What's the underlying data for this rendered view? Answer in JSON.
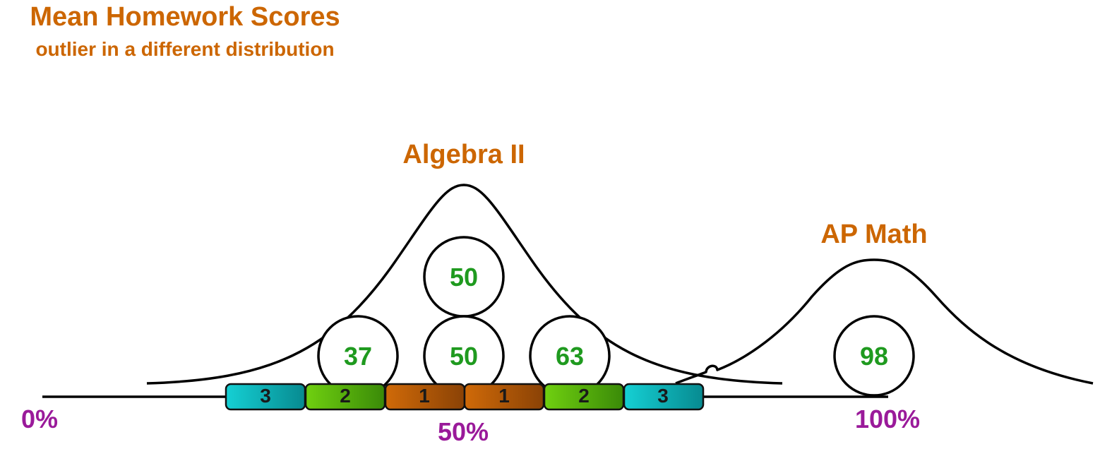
{
  "title": "Mean Homework Scores",
  "subtitle": "outlier in a different distribution",
  "distributions": [
    {
      "name": "Algebra II"
    },
    {
      "name": "AP Math"
    }
  ],
  "scores": [
    {
      "value": "37",
      "group": "Algebra II"
    },
    {
      "value": "50",
      "group": "Algebra II"
    },
    {
      "value": "50",
      "group": "Algebra II"
    },
    {
      "value": "63",
      "group": "Algebra II"
    },
    {
      "value": "98",
      "group": "AP Math"
    }
  ],
  "deviation_bands": [
    {
      "label": "3",
      "color": "cyan"
    },
    {
      "label": "2",
      "color": "green"
    },
    {
      "label": "1",
      "color": "orange"
    },
    {
      "label": "1",
      "color": "orange"
    },
    {
      "label": "2",
      "color": "green"
    },
    {
      "label": "3",
      "color": "cyan"
    }
  ],
  "axis_labels": {
    "left": "0%",
    "middle": "50%",
    "right": "100%"
  },
  "colors": {
    "title": "#cc6600",
    "score": "#1f9a1f",
    "axis_label": "#9a1a9a",
    "cyan": "#0aa8b0",
    "green": "#4ea80a",
    "orange": "#b25a08"
  }
}
